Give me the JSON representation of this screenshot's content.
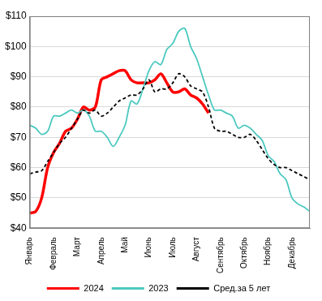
{
  "chart_data": {
    "type": "line",
    "categories": [
      "Январь",
      null,
      null,
      null,
      "Февраль",
      null,
      null,
      null,
      "Март",
      null,
      null,
      null,
      "Апрель",
      null,
      null,
      null,
      "Май",
      null,
      null,
      null,
      "Июнь",
      null,
      null,
      null,
      "Июль",
      null,
      null,
      null,
      "Август",
      null,
      null,
      null,
      "Сентябрь",
      null,
      null,
      null,
      "Октябрь",
      null,
      null,
      null,
      "Ноябрь",
      null,
      null,
      null,
      "Декабрь",
      null,
      null,
      null
    ],
    "series": [
      {
        "name": "2024",
        "color": "#ff0000",
        "line_style": "solid",
        "values": [
          45,
          45.5,
          50,
          60,
          65,
          68,
          72,
          73,
          76,
          80,
          79,
          80,
          89,
          90,
          91,
          92,
          92,
          89,
          88,
          88,
          88,
          89,
          91,
          88,
          85,
          85,
          86,
          84,
          83,
          81,
          78,
          null,
          null,
          null,
          null,
          null,
          null,
          null,
          null,
          null,
          null,
          null,
          null,
          null,
          null,
          null,
          null,
          null
        ]
      },
      {
        "name": "2023",
        "color": "#4cc9c0",
        "line_style": "solid",
        "values": [
          74,
          73,
          71,
          72,
          77,
          77,
          78,
          79,
          78,
          79,
          77,
          72,
          72,
          70,
          67,
          70,
          74,
          82,
          81,
          86,
          92,
          95,
          94,
          99,
          101,
          105,
          106,
          100,
          96,
          90,
          84,
          79,
          79,
          78,
          77,
          73,
          74,
          73,
          71,
          69,
          64,
          62,
          58,
          56,
          50,
          48,
          47,
          45.5
        ]
      },
      {
        "name": "Сред.за 5 лет",
        "color": "#000000",
        "line_style": "dashed",
        "values": [
          58,
          58.5,
          59,
          62,
          65,
          68,
          70,
          73,
          76,
          79,
          78,
          79,
          77,
          78,
          80,
          82,
          83,
          84,
          84,
          86,
          89,
          85,
          86,
          86,
          88,
          91,
          90,
          87,
          86,
          85,
          80,
          73,
          72,
          72,
          71,
          70,
          70,
          71,
          69,
          66,
          63,
          61,
          60,
          60,
          59,
          58,
          57,
          56
        ]
      }
    ],
    "ylim": [
      40,
      110
    ],
    "yticks": [
      {
        "value": 40,
        "label": "$40"
      },
      {
        "value": 50,
        "label": "$50"
      },
      {
        "value": 60,
        "label": "$60"
      },
      {
        "value": 70,
        "label": "$70"
      },
      {
        "value": 80,
        "label": "$80"
      },
      {
        "value": 90,
        "label": "$90"
      },
      {
        "value": 100,
        "label": "$100"
      },
      {
        "value": 110,
        "label": "$110"
      }
    ],
    "grid": true,
    "legend": "bottom"
  }
}
